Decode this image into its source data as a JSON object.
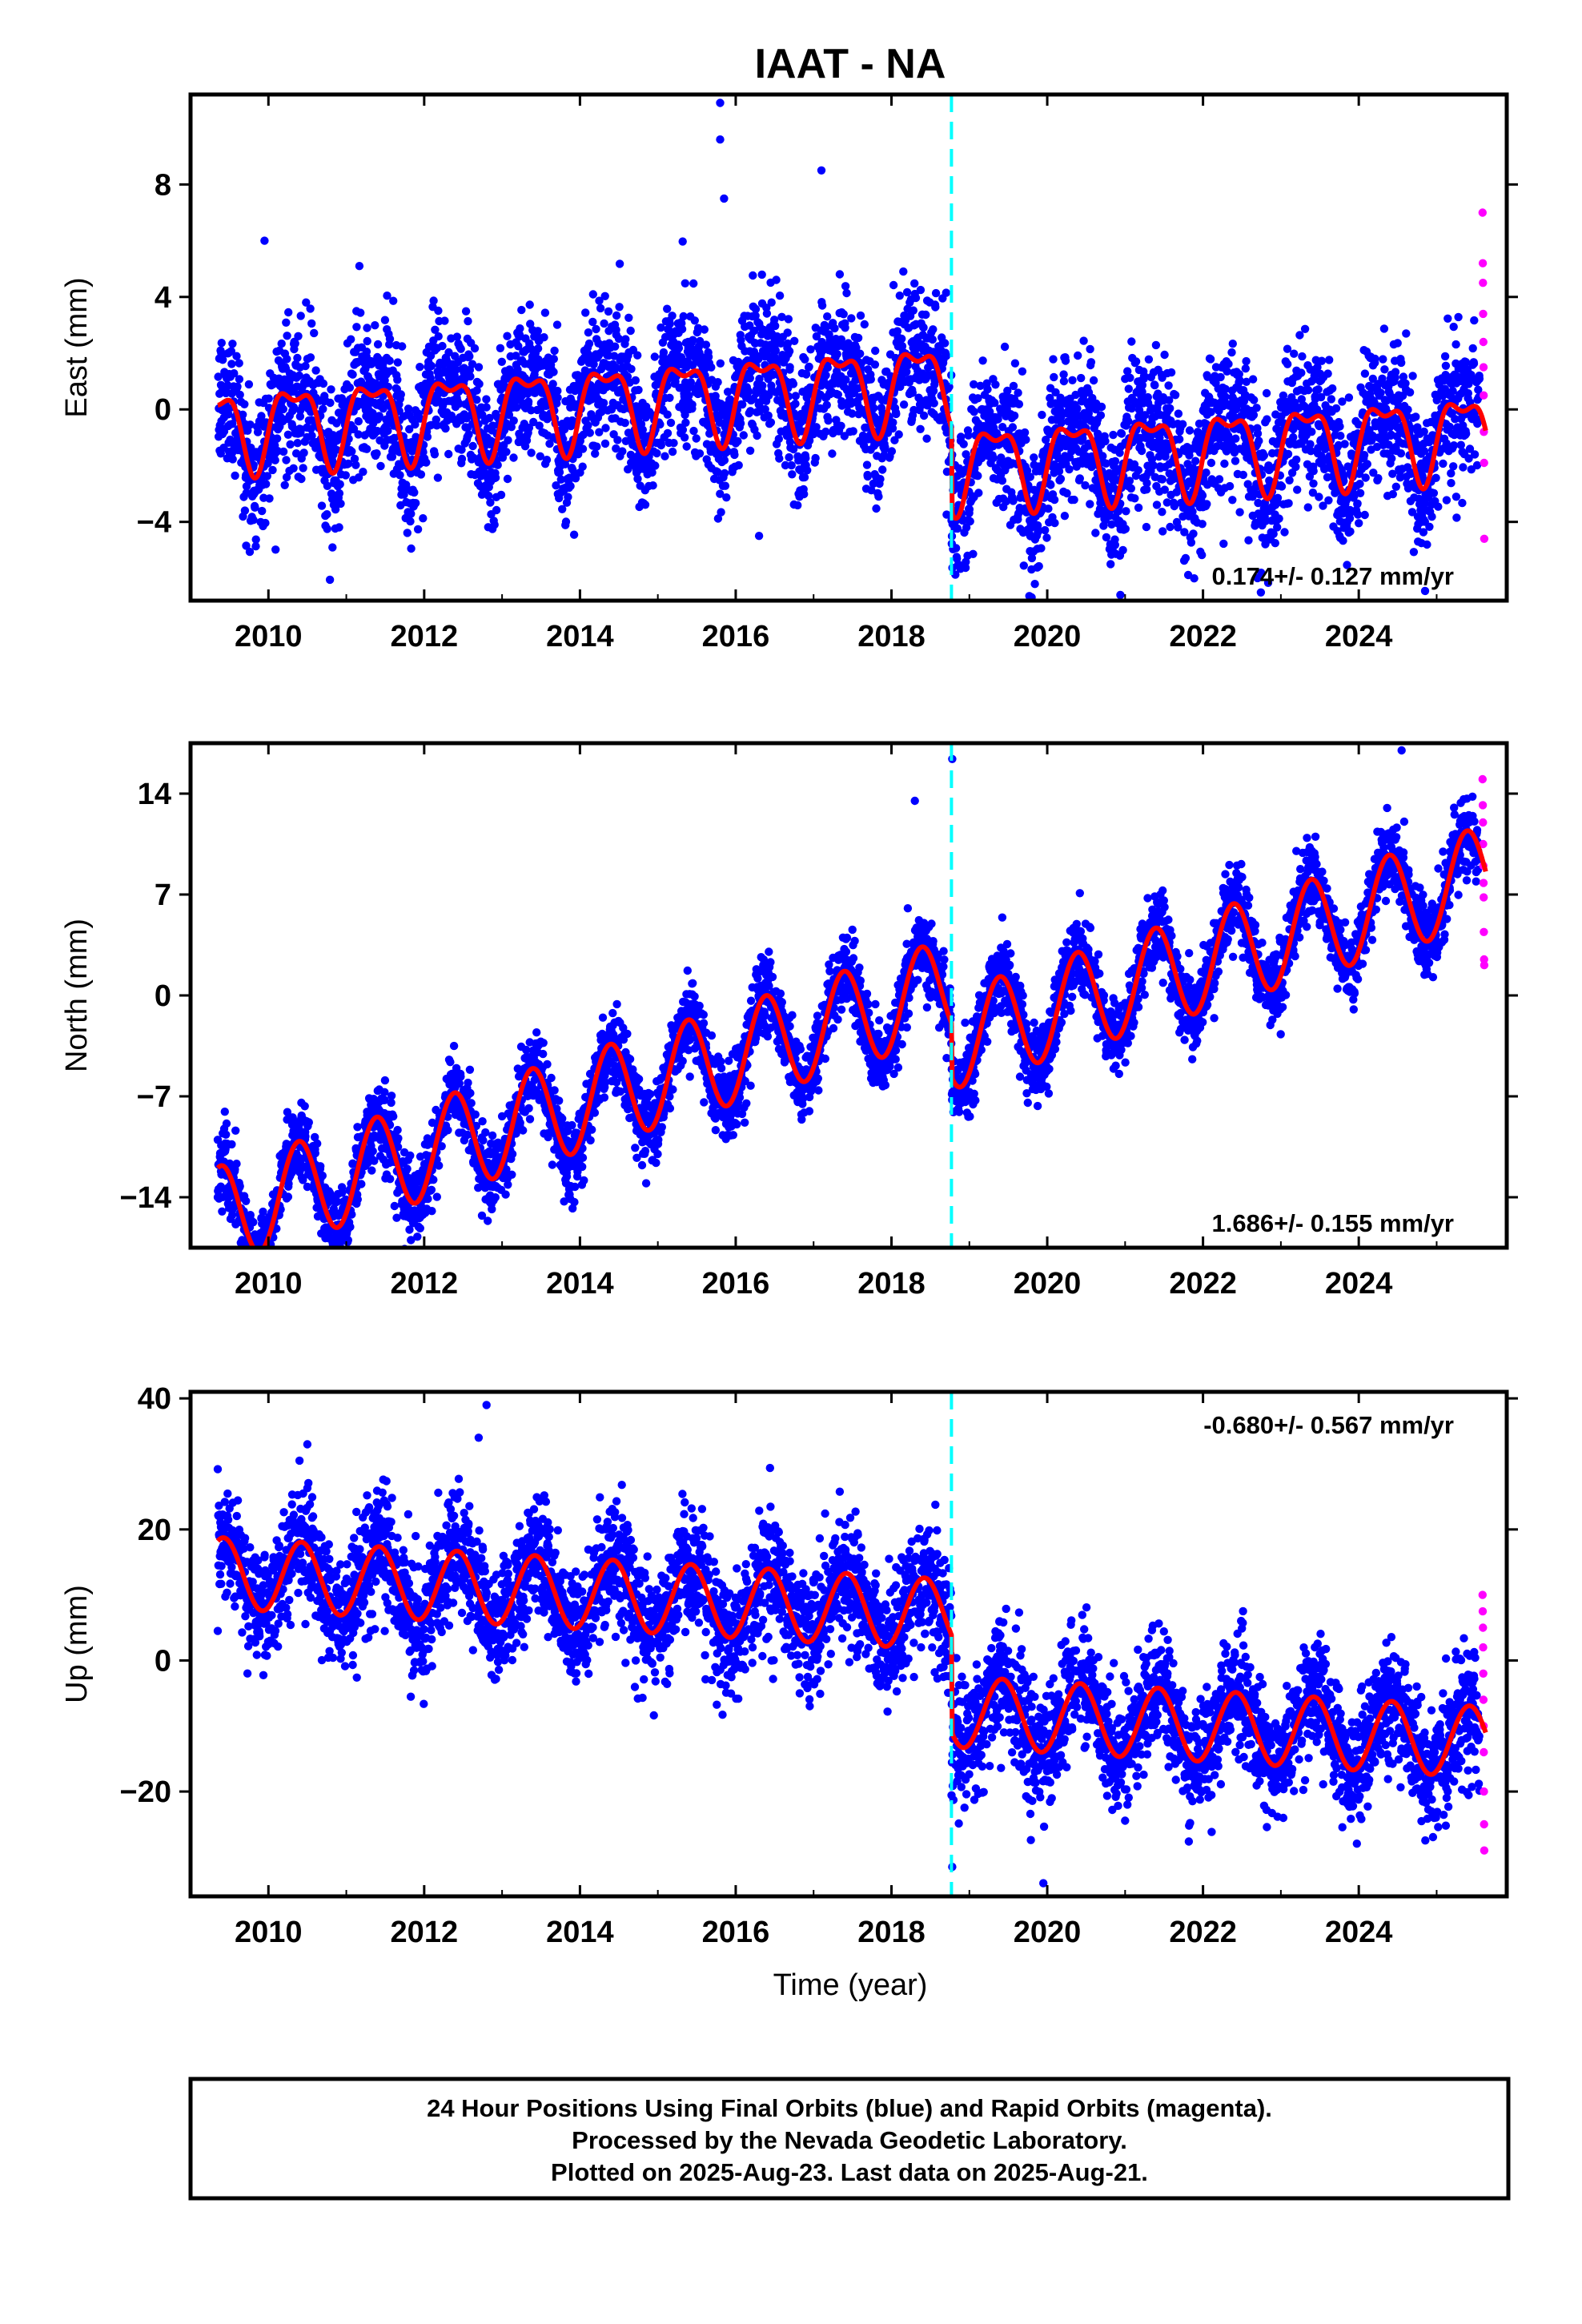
{
  "title": "IAAT - NA",
  "xlabel": "Time (year)",
  "footer": {
    "line1": "24 Hour Positions Using Final Orbits (blue) and Rapid Orbits (magenta).",
    "line2": "Processed by the Nevada Geodetic Laboratory.",
    "line3": "Plotted on 2025-Aug-23. Last data on 2025-Aug-21."
  },
  "colors": {
    "final": "#0000ff",
    "rapid": "#ff00ff",
    "model": "#ff0000",
    "offset": "#00ffff"
  },
  "chart_data": [
    {
      "type": "scatter",
      "component": "East",
      "ylabel": "East (mm)",
      "rate_label": "0.174+/- 0.127 mm/yr",
      "xlim": [
        2009.0,
        2025.9
      ],
      "ylim": [
        -6.8,
        11.2
      ],
      "yticks": [
        -4,
        0,
        4,
        8
      ],
      "xticks": [
        2010,
        2012,
        2014,
        2016,
        2018,
        2020,
        2022,
        2024
      ],
      "offset_epoch": 2018.77,
      "data_start": 2009.35,
      "final_end": 2025.55,
      "rapid_end": 2025.63,
      "model": {
        "pre": {
          "intercept": 0.9,
          "rate": 0.174,
          "ref": 2018.0,
          "annual_sin": 1.2,
          "annual_cos": -0.6,
          "semi_sin": 0.5,
          "semi_cos": 0.3
        },
        "post": {
          "intercept": -1.4,
          "rate": 0.174,
          "ref": 2022.0,
          "annual_sin": 1.2,
          "annual_cos": -0.6,
          "semi_sin": 0.5,
          "semi_cos": 0.3
        }
      },
      "noise_sd": 1.25,
      "outliers": [
        [
          2015.8,
          10.9
        ],
        [
          2015.8,
          9.6
        ],
        [
          2015.85,
          7.5
        ],
        [
          2017.1,
          8.5
        ],
        [
          2009.95,
          6.0
        ],
        [
          2016.3,
          -4.5
        ],
        [
          2022.7,
          -6.0
        ]
      ],
      "rapid_values": [
        7.0,
        5.2,
        4.5,
        3.4,
        2.4,
        1.5,
        0.5,
        -0.8,
        -1.9,
        -4.6
      ]
    },
    {
      "type": "scatter",
      "component": "North",
      "ylabel": "North (mm)",
      "rate_label": "1.686+/- 0.155 mm/yr",
      "xlim": [
        2009.0,
        2025.9
      ],
      "ylim": [
        -17.5,
        17.5
      ],
      "yticks": [
        -14,
        -7,
        0,
        7,
        14
      ],
      "xticks": [
        2010,
        2012,
        2014,
        2016,
        2018,
        2020,
        2022,
        2024
      ],
      "offset_epoch": 2018.77,
      "data_start": 2009.35,
      "final_end": 2025.55,
      "rapid_end": 2025.63,
      "model": {
        "pre": {
          "intercept": -0.7,
          "rate": 1.686,
          "ref": 2018.0,
          "annual_sin": 2.2,
          "annual_cos": -2.6,
          "semi_sin": 0.0,
          "semi_cos": 0.0
        },
        "post": {
          "intercept": 2.3,
          "rate": 1.686,
          "ref": 2022.0,
          "annual_sin": 2.2,
          "annual_cos": -2.6,
          "semi_sin": 0.0,
          "semi_cos": 0.0
        }
      },
      "noise_sd": 1.3,
      "outliers": [
        [
          2018.78,
          16.4
        ],
        [
          2024.55,
          17.0
        ],
        [
          2018.3,
          13.5
        ],
        [
          2009.35,
          -14.0
        ]
      ],
      "rapid_values": [
        15.0,
        13.2,
        12.0,
        10.5,
        9.0,
        7.8,
        6.8,
        4.4,
        2.5,
        2.1
      ]
    },
    {
      "type": "scatter",
      "component": "Up",
      "ylabel": "Up (mm)",
      "rate_label": "-0.680+/- 0.567 mm/yr",
      "xlim": [
        2009.0,
        2025.9
      ],
      "ylim": [
        -36,
        41
      ],
      "yticks": [
        -20,
        0,
        20,
        40
      ],
      "xticks": [
        2010,
        2012,
        2014,
        2016,
        2018,
        2020,
        2022,
        2024
      ],
      "offset_epoch": 2018.77,
      "data_start": 2009.35,
      "final_end": 2025.55,
      "rapid_end": 2025.63,
      "model": {
        "pre": {
          "intercept": 7.5,
          "rate": -0.68,
          "ref": 2018.0,
          "annual_sin": 2.5,
          "annual_cos": -4.8,
          "semi_sin": 0.0,
          "semi_cos": 0.0
        },
        "post": {
          "intercept": -10.0,
          "rate": -0.68,
          "ref": 2022.0,
          "annual_sin": 2.5,
          "annual_cos": -4.8,
          "semi_sin": 0.0,
          "semi_cos": 0.0
        }
      },
      "noise_sd": 4.5,
      "outliers": [
        [
          2012.8,
          39.0
        ],
        [
          2012.7,
          34.0
        ],
        [
          2010.5,
          33.0
        ],
        [
          2019.95,
          -34.0
        ],
        [
          2018.78,
          -31.5
        ],
        [
          2009.35,
          4.5
        ]
      ],
      "rapid_values": [
        10.0,
        7.5,
        5.0,
        2.0,
        -2.0,
        -6.0,
        -10.0,
        -14.0,
        -20.0,
        -25.0,
        -29.0
      ]
    }
  ]
}
